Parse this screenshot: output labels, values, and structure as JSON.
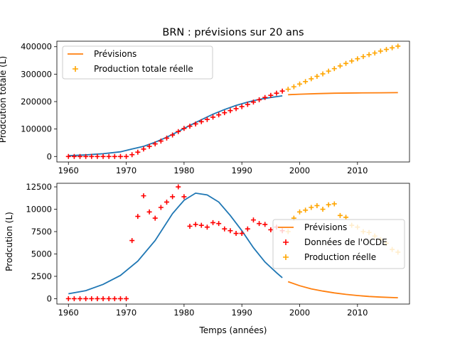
{
  "colors": {
    "fit": "#1f77b4",
    "forecast": "#ff7f0e",
    "actual_past": "#ff0000",
    "actual_future": "#ffa500"
  },
  "chart_data": [
    {
      "type": "line",
      "title": "BRN : prévisions sur 20 ans",
      "xlabel": "",
      "ylabel": "Prodcution totale (L)",
      "xlim": [
        1958,
        2019
      ],
      "ylim": [
        -20000,
        420000
      ],
      "xticks": [
        1960,
        1970,
        1980,
        1990,
        2000,
        2010
      ],
      "yticks": [
        0,
        100000,
        200000,
        300000,
        400000
      ],
      "grid": false,
      "legend_position": "top-left",
      "legend": [
        {
          "label": "Prévisions",
          "marker": "line",
          "color": "#ff7f0e"
        },
        {
          "label": "Production totale réelle",
          "marker": "plus",
          "color": "#ffa500"
        }
      ],
      "series": [
        {
          "kind": "line",
          "color": "#1f77b4",
          "x": [
            1960,
            1963,
            1966,
            1969,
            1971,
            1973,
            1975,
            1977,
            1979,
            1981,
            1983,
            1985,
            1987,
            1989,
            1991,
            1993,
            1995,
            1997
          ],
          "y": [
            3000,
            6000,
            10000,
            17000,
            27000,
            37000,
            52000,
            70000,
            91000,
            113000,
            134000,
            154000,
            171000,
            186000,
            198000,
            208000,
            215000,
            221000
          ]
        },
        {
          "kind": "line",
          "color": "#ff7f0e",
          "x": [
            1998,
            2000,
            2003,
            2006,
            2010,
            2014,
            2017
          ],
          "y": [
            225000,
            227000,
            229000,
            230500,
            231500,
            232000,
            232500
          ]
        },
        {
          "kind": "scatter",
          "color": "#ff0000",
          "x": [
            1960,
            1961,
            1962,
            1963,
            1964,
            1965,
            1966,
            1967,
            1968,
            1969,
            1970,
            1971,
            1972,
            1973,
            1974,
            1975,
            1976,
            1977,
            1978,
            1979,
            1980,
            1981,
            1982,
            1983,
            1984,
            1985,
            1986,
            1987,
            1988,
            1989,
            1990,
            1991,
            1992,
            1993,
            1994,
            1995,
            1996,
            1997
          ],
          "y": [
            0,
            0,
            0,
            0,
            0,
            0,
            0,
            0,
            0,
            0,
            0,
            6500,
            15700,
            27200,
            36900,
            45900,
            56100,
            66900,
            78300,
            90800,
            102200,
            110300,
            118600,
            126800,
            134800,
            143300,
            151700,
            159500,
            167100,
            174400,
            181700,
            189500,
            198300,
            206700,
            215000,
            222700,
            230700,
            238300
          ]
        },
        {
          "kind": "scatter",
          "color": "#ffa500",
          "x": [
            1998,
            1999,
            2000,
            2001,
            2002,
            2003,
            2004,
            2005,
            2006,
            2007,
            2008,
            2009,
            2010,
            2011,
            2012,
            2013,
            2014,
            2015,
            2016,
            2017
          ],
          "y": [
            245000,
            254000,
            264000,
            273000,
            283000,
            292000,
            301000,
            311000,
            320000,
            330000,
            339000,
            348000,
            356000,
            364000,
            371000,
            377000,
            384000,
            390000,
            396000,
            402000
          ]
        }
      ]
    },
    {
      "type": "line",
      "title": "",
      "xlabel": "Temps (années)",
      "ylabel": "Prodcution (L)",
      "xlim": [
        1958,
        2019
      ],
      "ylim": [
        -600,
        12900
      ],
      "xticks": [
        1960,
        1970,
        1980,
        1990,
        2000,
        2010
      ],
      "yticks": [
        0,
        2500,
        5000,
        7500,
        10000,
        12500
      ],
      "grid": false,
      "legend_position": "center-right",
      "legend": [
        {
          "label": "Prévisions",
          "marker": "line",
          "color": "#ff7f0e"
        },
        {
          "label": "Données de l'OCDE",
          "marker": "plus",
          "color": "#ff0000"
        },
        {
          "label": "Production réelle",
          "marker": "plus",
          "color": "#ffa500"
        }
      ],
      "series": [
        {
          "kind": "line",
          "color": "#1f77b4",
          "x": [
            1960,
            1963,
            1966,
            1969,
            1972,
            1975,
            1978,
            1980,
            1982,
            1984,
            1986,
            1988,
            1990,
            1992,
            1994,
            1996,
            1997
          ],
          "y": [
            550,
            900,
            1600,
            2600,
            4200,
            6500,
            9500,
            11000,
            11800,
            11600,
            10800,
            9300,
            7600,
            5700,
            4100,
            2900,
            2350
          ]
        },
        {
          "kind": "line",
          "color": "#ff7f0e",
          "x": [
            1998,
            2000,
            2002,
            2004,
            2006,
            2008,
            2010,
            2012,
            2014,
            2017
          ],
          "y": [
            1900,
            1450,
            1100,
            850,
            650,
            480,
            350,
            250,
            180,
            110
          ]
        },
        {
          "kind": "scatter",
          "color": "#ff0000",
          "x": [
            1960,
            1961,
            1962,
            1963,
            1964,
            1965,
            1966,
            1967,
            1968,
            1969,
            1970,
            1971,
            1972,
            1973,
            1974,
            1975,
            1976,
            1977,
            1978,
            1979,
            1980,
            1981,
            1982,
            1983,
            1984,
            1985,
            1986,
            1987,
            1988,
            1989,
            1990,
            1991,
            1992,
            1993,
            1994,
            1995,
            1996,
            1997
          ],
          "y": [
            0,
            0,
            0,
            0,
            0,
            0,
            0,
            0,
            0,
            0,
            0,
            6500,
            9200,
            11500,
            9700,
            9000,
            10200,
            10800,
            11400,
            12500,
            11400,
            8100,
            8300,
            8200,
            8000,
            8500,
            8400,
            7800,
            7600,
            7300,
            7300,
            7800,
            8800,
            8400,
            8300,
            7700,
            8000,
            7600
          ]
        },
        {
          "kind": "scatter",
          "color": "#ffa500",
          "x": [
            1998,
            1999,
            2000,
            2001,
            2002,
            2003,
            2004,
            2005,
            2006,
            2007,
            2008,
            2009,
            2010,
            2011,
            2012,
            2013,
            2014,
            2015,
            2016,
            2017
          ],
          "y": [
            7500,
            9000,
            9700,
            9900,
            10200,
            10400,
            10000,
            10500,
            10600,
            9300,
            9100,
            8200,
            8000,
            7500,
            7400,
            7000,
            6600,
            6200,
            5500,
            5200
          ]
        }
      ]
    }
  ]
}
